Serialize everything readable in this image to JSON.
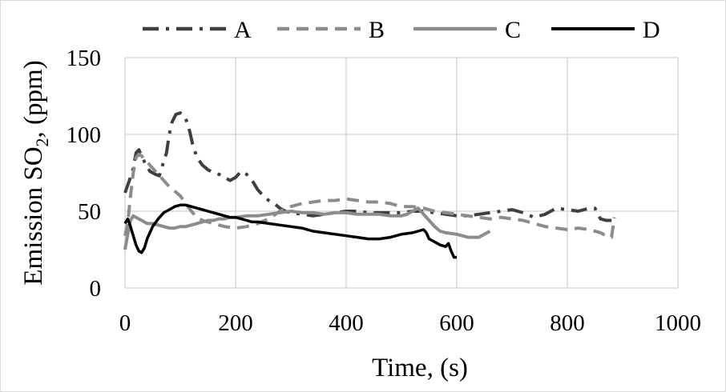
{
  "chart_data": {
    "type": "line",
    "title": "",
    "xlabel": "Time, (s)",
    "ylabel_main": "Emission SO",
    "ylabel_sub": "2",
    "ylabel_tail": ", (ppm)",
    "xlim": [
      0,
      1000
    ],
    "ylim": [
      0,
      150
    ],
    "x_ticks": [
      "0",
      "200",
      "400",
      "600",
      "800",
      "1000"
    ],
    "y_ticks": [
      "0",
      "50",
      "100",
      "150"
    ],
    "grid": true,
    "legend_position": "top",
    "series": [
      {
        "name": "A",
        "style": "dash-dot",
        "color": "#3f3f3f",
        "points": [
          [
            0,
            62
          ],
          [
            8,
            70
          ],
          [
            15,
            78
          ],
          [
            20,
            88
          ],
          [
            25,
            90
          ],
          [
            30,
            86
          ],
          [
            38,
            80
          ],
          [
            45,
            76
          ],
          [
            55,
            74
          ],
          [
            62,
            73
          ],
          [
            68,
            80
          ],
          [
            75,
            88
          ],
          [
            80,
            100
          ],
          [
            85,
            108
          ],
          [
            92,
            113
          ],
          [
            100,
            114
          ],
          [
            108,
            112
          ],
          [
            115,
            105
          ],
          [
            122,
            94
          ],
          [
            130,
            85
          ],
          [
            140,
            80
          ],
          [
            150,
            77
          ],
          [
            160,
            75
          ],
          [
            170,
            74
          ],
          [
            180,
            72
          ],
          [
            190,
            70
          ],
          [
            200,
            72
          ],
          [
            210,
            76
          ],
          [
            220,
            74
          ],
          [
            230,
            70
          ],
          [
            240,
            64
          ],
          [
            250,
            60
          ],
          [
            260,
            57
          ],
          [
            270,
            55
          ],
          [
            280,
            52
          ],
          [
            290,
            50
          ],
          [
            300,
            49
          ],
          [
            320,
            48
          ],
          [
            340,
            47
          ],
          [
            360,
            48
          ],
          [
            380,
            49
          ],
          [
            400,
            50
          ],
          [
            420,
            50
          ],
          [
            440,
            49
          ],
          [
            460,
            49
          ],
          [
            480,
            49
          ],
          [
            500,
            49
          ],
          [
            520,
            50
          ],
          [
            540,
            50
          ],
          [
            560,
            49
          ],
          [
            580,
            48
          ],
          [
            600,
            47
          ],
          [
            620,
            47
          ],
          [
            640,
            48
          ],
          [
            660,
            49
          ],
          [
            680,
            50
          ],
          [
            700,
            51
          ],
          [
            720,
            49
          ],
          [
            740,
            46
          ],
          [
            760,
            48
          ],
          [
            780,
            52
          ],
          [
            800,
            51
          ],
          [
            820,
            50
          ],
          [
            840,
            52
          ],
          [
            850,
            52
          ],
          [
            855,
            48
          ],
          [
            860,
            45
          ],
          [
            870,
            44
          ],
          [
            880,
            44
          ]
        ]
      },
      {
        "name": "B",
        "style": "dashed",
        "color": "#8c8c8c",
        "points": [
          [
            0,
            34
          ],
          [
            5,
            42
          ],
          [
            10,
            60
          ],
          [
            15,
            75
          ],
          [
            20,
            85
          ],
          [
            25,
            87
          ],
          [
            30,
            86
          ],
          [
            40,
            82
          ],
          [
            50,
            78
          ],
          [
            60,
            74
          ],
          [
            70,
            70
          ],
          [
            80,
            66
          ],
          [
            90,
            63
          ],
          [
            100,
            60
          ],
          [
            110,
            55
          ],
          [
            120,
            50
          ],
          [
            130,
            46
          ],
          [
            140,
            44
          ],
          [
            150,
            43
          ],
          [
            160,
            42
          ],
          [
            170,
            41
          ],
          [
            180,
            40
          ],
          [
            200,
            39
          ],
          [
            220,
            40
          ],
          [
            240,
            42
          ],
          [
            260,
            45
          ],
          [
            280,
            50
          ],
          [
            300,
            53
          ],
          [
            320,
            55
          ],
          [
            340,
            56
          ],
          [
            360,
            57
          ],
          [
            380,
            57
          ],
          [
            400,
            58
          ],
          [
            420,
            57
          ],
          [
            440,
            56
          ],
          [
            460,
            56
          ],
          [
            480,
            55
          ],
          [
            500,
            53
          ],
          [
            520,
            53
          ],
          [
            540,
            52
          ],
          [
            560,
            50
          ],
          [
            580,
            49
          ],
          [
            600,
            48
          ],
          [
            620,
            47
          ],
          [
            640,
            46
          ],
          [
            660,
            45
          ],
          [
            680,
            46
          ],
          [
            700,
            45
          ],
          [
            720,
            44
          ],
          [
            740,
            42
          ],
          [
            760,
            40
          ],
          [
            780,
            39
          ],
          [
            800,
            38
          ],
          [
            820,
            39
          ],
          [
            840,
            38
          ],
          [
            860,
            36
          ],
          [
            870,
            34
          ],
          [
            880,
            33
          ],
          [
            885,
            46
          ]
        ]
      },
      {
        "name": "C",
        "style": "solid",
        "color": "#8c8c8c",
        "points": [
          [
            0,
            25
          ],
          [
            5,
            35
          ],
          [
            10,
            44
          ],
          [
            15,
            47
          ],
          [
            20,
            46
          ],
          [
            30,
            44
          ],
          [
            40,
            42
          ],
          [
            50,
            42
          ],
          [
            60,
            41
          ],
          [
            70,
            40
          ],
          [
            80,
            39
          ],
          [
            90,
            39
          ],
          [
            100,
            40
          ],
          [
            110,
            40
          ],
          [
            120,
            41
          ],
          [
            130,
            42
          ],
          [
            140,
            43
          ],
          [
            150,
            44
          ],
          [
            160,
            44
          ],
          [
            170,
            45
          ],
          [
            180,
            45
          ],
          [
            190,
            46
          ],
          [
            200,
            46
          ],
          [
            220,
            47
          ],
          [
            240,
            47
          ],
          [
            260,
            48
          ],
          [
            280,
            49
          ],
          [
            300,
            50
          ],
          [
            320,
            49
          ],
          [
            340,
            49
          ],
          [
            360,
            48
          ],
          [
            380,
            49
          ],
          [
            400,
            49
          ],
          [
            420,
            48
          ],
          [
            440,
            48
          ],
          [
            460,
            48
          ],
          [
            480,
            47
          ],
          [
            500,
            47
          ],
          [
            510,
            48
          ],
          [
            520,
            50
          ],
          [
            530,
            52
          ],
          [
            540,
            48
          ],
          [
            550,
            44
          ],
          [
            560,
            40
          ],
          [
            570,
            37
          ],
          [
            580,
            36
          ],
          [
            600,
            35
          ],
          [
            610,
            34
          ],
          [
            620,
            33
          ],
          [
            630,
            33
          ],
          [
            640,
            33
          ],
          [
            650,
            35
          ],
          [
            660,
            37
          ]
        ]
      },
      {
        "name": "D",
        "style": "solid",
        "color": "#000000",
        "points": [
          [
            0,
            42
          ],
          [
            5,
            45
          ],
          [
            10,
            40
          ],
          [
            15,
            34
          ],
          [
            20,
            28
          ],
          [
            25,
            24
          ],
          [
            30,
            23
          ],
          [
            35,
            26
          ],
          [
            40,
            32
          ],
          [
            50,
            40
          ],
          [
            60,
            45
          ],
          [
            70,
            49
          ],
          [
            80,
            51
          ],
          [
            90,
            53
          ],
          [
            100,
            54
          ],
          [
            110,
            54
          ],
          [
            120,
            53
          ],
          [
            130,
            52
          ],
          [
            140,
            51
          ],
          [
            150,
            50
          ],
          [
            160,
            49
          ],
          [
            170,
            48
          ],
          [
            180,
            47
          ],
          [
            190,
            46
          ],
          [
            200,
            46
          ],
          [
            210,
            45
          ],
          [
            220,
            44
          ],
          [
            230,
            43
          ],
          [
            240,
            43
          ],
          [
            260,
            42
          ],
          [
            280,
            41
          ],
          [
            300,
            40
          ],
          [
            320,
            39
          ],
          [
            340,
            37
          ],
          [
            360,
            36
          ],
          [
            380,
            35
          ],
          [
            400,
            34
          ],
          [
            420,
            33
          ],
          [
            440,
            32
          ],
          [
            460,
            32
          ],
          [
            480,
            33
          ],
          [
            500,
            35
          ],
          [
            520,
            36
          ],
          [
            530,
            37
          ],
          [
            540,
            38
          ],
          [
            545,
            36
          ],
          [
            550,
            32
          ],
          [
            560,
            30
          ],
          [
            570,
            28
          ],
          [
            580,
            27
          ],
          [
            585,
            29
          ],
          [
            590,
            24
          ],
          [
            595,
            20
          ],
          [
            600,
            20
          ]
        ]
      }
    ]
  }
}
